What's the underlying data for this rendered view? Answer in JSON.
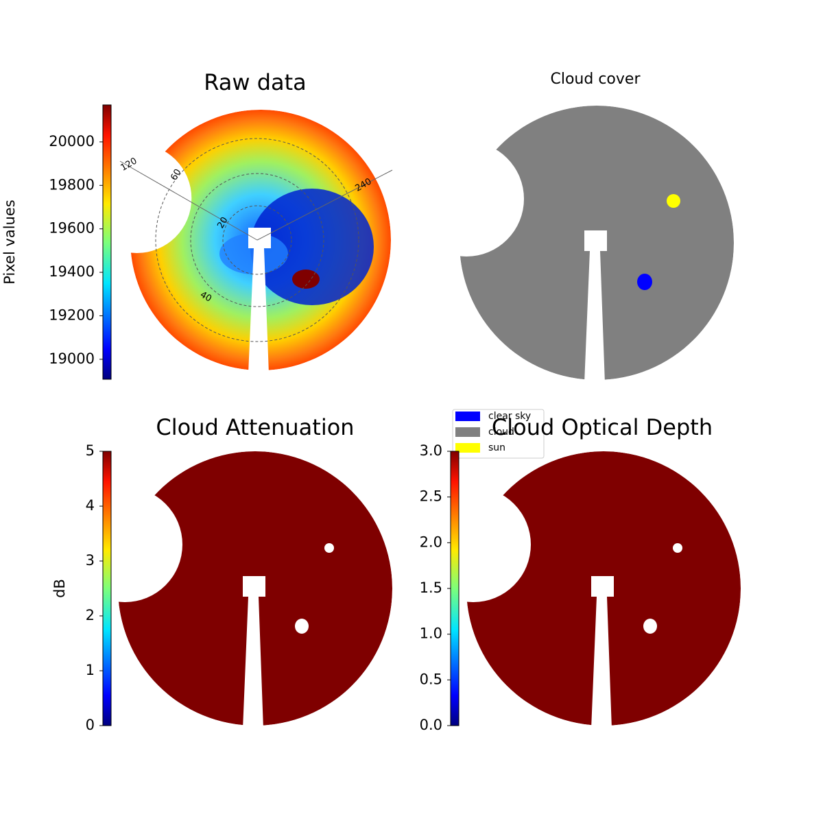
{
  "chart_data": [
    {
      "type": "image",
      "title": "Raw data",
      "colormap": "jet",
      "colorbar": {
        "label": "Pixel values",
        "lim": [
          18908,
          20170
        ],
        "ticks": [
          19000,
          19200,
          19400,
          19600,
          19800,
          20000
        ]
      },
      "annotations": [
        "120",
        "60",
        "240",
        "20",
        "40"
      ]
    },
    {
      "type": "image",
      "title": "Cloud cover",
      "legend": {
        "corner": "lower left",
        "entries": [
          {
            "name": "clear sky",
            "color": "#0000ff"
          },
          {
            "name": "cloud",
            "color": "#808080"
          },
          {
            "name": "sun",
            "color": "#ffff00"
          }
        ]
      }
    },
    {
      "type": "image",
      "title": "Cloud Attenuation",
      "colormap": "jet",
      "colorbar": {
        "label": "dB",
        "lim": [
          0,
          5
        ],
        "ticks": [
          0,
          1,
          2,
          3,
          4,
          5
        ]
      }
    },
    {
      "type": "image",
      "title": "Cloud Optical Depth",
      "colormap": "jet",
      "colorbar": {
        "lim": [
          0,
          3
        ],
        "ticks": [
          {
            "value": 0,
            "label": "0.0"
          },
          {
            "value": 0.5,
            "label": "0.5"
          },
          {
            "value": 1,
            "label": "1.0"
          },
          {
            "value": 1.5,
            "label": "1.5"
          },
          {
            "value": 2,
            "label": "2.0"
          },
          {
            "value": 2.5,
            "label": "2.5"
          },
          {
            "value": 3,
            "label": "3.0"
          }
        ]
      }
    }
  ]
}
